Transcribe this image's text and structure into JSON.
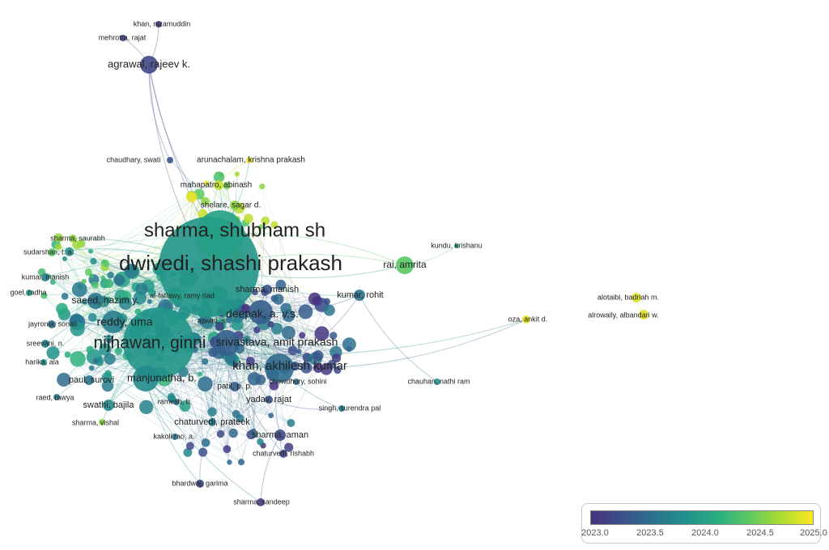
{
  "nodes": [
    {
      "label": "dwivedi, shashi prakash",
      "year": 2023.9
    },
    {
      "label": "sharma, shubham sh",
      "year": 2024.0
    },
    {
      "label": "nijhawan, ginni",
      "year": 2023.9
    },
    {
      "label": "khan, akhilesh kumar",
      "year": 2023.5
    },
    {
      "label": "srivastava, amit prakash",
      "year": 2023.4
    },
    {
      "label": "deepak, a. v.s.",
      "year": 2023.4
    },
    {
      "label": "reddy, uma",
      "year": 2023.7
    },
    {
      "label": "manjunatha, b.",
      "year": 2023.8
    },
    {
      "label": "agrawal, rajeev k.",
      "year": 2023.2
    },
    {
      "label": "rai, amrita",
      "year": 2024.4
    },
    {
      "label": "saeed, hazim y.",
      "year": 2023.6
    },
    {
      "label": "sharma, manish",
      "year": 2023.3
    },
    {
      "label": "kumar, rohit",
      "year": 2023.6
    },
    {
      "label": "sharma, aman",
      "year": 2023.2
    },
    {
      "label": "yadav, rajat",
      "year": 2023.3
    },
    {
      "label": "chaturvedi, prateek",
      "year": 2023.7
    },
    {
      "label": "swathi, bajila",
      "year": 2023.8
    },
    {
      "label": "paul, surovi",
      "year": 2023.6
    },
    {
      "label": "patil, p. p.",
      "year": 2023.4
    },
    {
      "label": "arunachalam, krishna prakash",
      "year": 2024.9
    },
    {
      "label": "mahapatro, abinash",
      "year": 2024.8
    },
    {
      "label": "shelare, sagar d.",
      "year": 2024.6
    },
    {
      "label": "chaudhary, swati",
      "year": 2023.3
    },
    {
      "label": "mehrotra, rajat",
      "year": 2023.2
    },
    {
      "label": "khan, nizamuddin",
      "year": 2023.1
    },
    {
      "label": "sharma, saurabh",
      "year": 2024.6
    },
    {
      "label": "sudarshan, t. a.",
      "year": 2024.4
    },
    {
      "label": "kumar, manish",
      "year": 2023.7
    },
    {
      "label": "goel, radha",
      "year": 2023.9
    },
    {
      "label": "al-fatlawy, ramy riad",
      "year": 2024.0
    },
    {
      "label": "aswini, s.",
      "year": 2023.6
    },
    {
      "label": "jayronia, sonali",
      "year": 2023.6
    },
    {
      "label": "sreevani, n.",
      "year": 2023.7
    },
    {
      "label": "harika, ala",
      "year": 2023.9
    },
    {
      "label": "raed, rawya",
      "year": 2023.6
    },
    {
      "label": "ramesh, b.",
      "year": 2023.6
    },
    {
      "label": "sharma, vishal",
      "year": 2024.6
    },
    {
      "label": "kakoli rao, a.",
      "year": 2023.6
    },
    {
      "label": "chaturvedi, rishabh",
      "year": 2023.2
    },
    {
      "label": "bhardwaj, garima",
      "year": 2023.2
    },
    {
      "label": "sharma, sandeep",
      "year": 2023.1
    },
    {
      "label": "chowdhury, sohini",
      "year": 2023.6
    },
    {
      "label": "singh, surendra pal",
      "year": 2023.7
    },
    {
      "label": "chauhan, nathi ram",
      "year": 2023.9
    },
    {
      "label": "kundu, krishanu",
      "year": 2024.0
    },
    {
      "label": "oza, ankit d.",
      "year": 2024.9
    },
    {
      "label": "alotaibi, badriah m.",
      "year": 2024.9
    },
    {
      "label": "alrowaily, albandari w.",
      "year": 2024.9
    }
  ],
  "colorbar": {
    "ticks": [
      "2023.0",
      "2023.5",
      "2024.0",
      "2024.5",
      "2025.0"
    ],
    "colors": [
      "#46327e",
      "#3b528b",
      "#2c728e",
      "#21918c",
      "#28ae80",
      "#5ec962",
      "#addc30",
      "#fde725"
    ]
  }
}
